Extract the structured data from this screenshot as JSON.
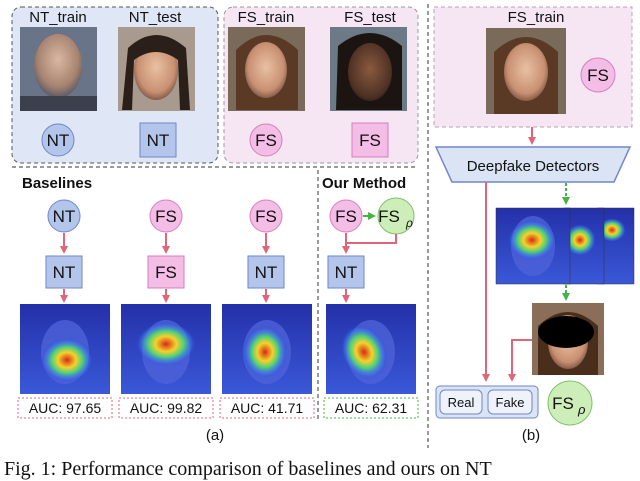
{
  "panel_a": {
    "labels": {
      "nt_train": "NT_train",
      "nt_test": "NT_test",
      "fs_train": "FS_train",
      "fs_test": "FS_test"
    },
    "top_nodes": {
      "nt_circle": "NT",
      "nt_square": "NT",
      "fs_circle": "FS",
      "fs_square": "FS"
    },
    "baselines_title": "Baselines",
    "our_method_title": "Our Method",
    "columns": [
      {
        "source": "NT",
        "detector": "NT",
        "auc": "AUC: 97.65"
      },
      {
        "source": "FS",
        "detector": "FS",
        "auc": "AUC: 99.82"
      },
      {
        "source": "FS",
        "detector": "NT",
        "auc": "AUC: 41.71"
      }
    ],
    "our_method": {
      "source": "FS",
      "augmented": "FS",
      "augmented_sub": "ρ",
      "detector": "NT",
      "auc": "AUC: 62.31"
    },
    "sub_label": "(a)"
  },
  "panel_b": {
    "fs_train": "FS_train",
    "fs_node": "FS",
    "detectors": "Deepfake Detectors",
    "real": "Real",
    "fake": "Fake",
    "fs_rho": "FS",
    "fs_rho_sub": "ρ",
    "sub_label": "(b)"
  },
  "caption": "Fig. 1: Performance comparison of baselines and ours on NT",
  "colors": {
    "nt_fill": "#b4c5ec",
    "nt_stroke": "#6f86c8",
    "fs_fill": "#f4bde6",
    "fs_stroke": "#d47fbc",
    "aug_fill": "#cdeeb9",
    "aug_stroke": "#7cc36a",
    "arrow_red": "#e06578",
    "arrow_green": "#44b444",
    "panel_fill": "#f6e6f4",
    "detector_fill": "#dbe4f5"
  }
}
